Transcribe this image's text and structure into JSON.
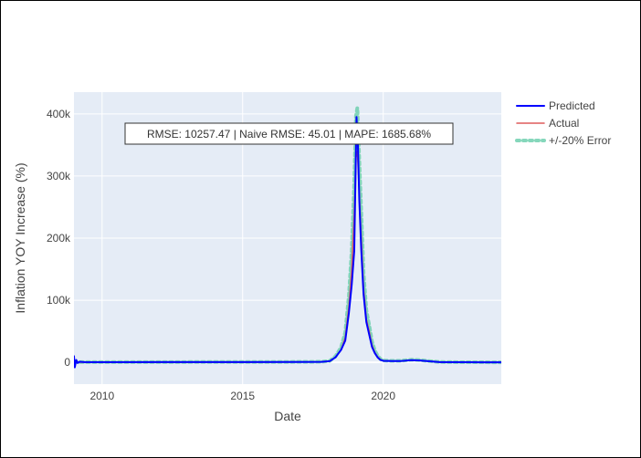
{
  "chart_data": {
    "type": "line",
    "title": "",
    "xlabel": "Date",
    "ylabel": "Inflation YOY Increase (%)",
    "xlim": [
      2009.0,
      2024.2
    ],
    "ylim": [
      -35000,
      435000
    ],
    "x_ticks": [
      2010,
      2015,
      2020
    ],
    "x_tick_labels": [
      "2010",
      "2015",
      "2020"
    ],
    "y_ticks": [
      0,
      100000,
      200000,
      300000,
      400000
    ],
    "y_tick_labels": [
      "0",
      "100k",
      "200k",
      "300k",
      "400k"
    ],
    "grid": true,
    "legend_position": "top-right",
    "annotation": "RMSE: 10257.47 | Naive RMSE: 45.01 | MAPE: 1685.68%",
    "series": [
      {
        "name": "Predicted",
        "color": "#0000FF",
        "style": "solid",
        "x": [
          2009.0,
          2009.03,
          2009.08,
          2009.13,
          2009.2,
          2009.4,
          2010,
          2012,
          2015,
          2017,
          2017.8,
          2018.1,
          2018.3,
          2018.5,
          2018.65,
          2018.78,
          2018.88,
          2018.97,
          2019.05,
          2019.1,
          2019.15,
          2019.22,
          2019.3,
          2019.4,
          2019.5,
          2019.6,
          2019.7,
          2019.8,
          2019.9,
          2020.0,
          2020.3,
          2020.6,
          2021.0,
          2021.3,
          2021.7,
          2022.0,
          2022.5,
          2023.0,
          2023.5,
          2024.2
        ],
        "y": [
          10000,
          -8000,
          4000,
          -1000,
          1000,
          200,
          300,
          400,
          500,
          600,
          800,
          2000,
          8000,
          20000,
          35000,
          80000,
          125000,
          180000,
          395000,
          350000,
          260000,
          180000,
          110000,
          65000,
          45000,
          25000,
          15000,
          8000,
          4000,
          2500,
          2000,
          2000,
          3500,
          3000,
          1500,
          500,
          300,
          200,
          150,
          100
        ]
      },
      {
        "name": "Actual",
        "color": "#DE5C5C",
        "style": "solid",
        "x": [
          2009.0,
          2010,
          2012,
          2015,
          2017,
          2017.8,
          2018.1,
          2018.3,
          2018.5,
          2018.65,
          2018.78,
          2018.88,
          2018.97,
          2019.03,
          2019.08,
          2019.15,
          2019.22,
          2019.3,
          2019.4,
          2019.5,
          2019.6,
          2019.7,
          2019.8,
          2019.9,
          2020.0,
          2020.3,
          2020.6,
          2021.0,
          2021.3,
          2021.7,
          2022.0,
          2022.5,
          2023.0,
          2023.5,
          2024.2
        ],
        "y": [
          300,
          300,
          400,
          500,
          600,
          800,
          2000,
          8000,
          20000,
          40000,
          90000,
          150000,
          240000,
          330000,
          340000,
          270000,
          200000,
          120000,
          70000,
          50000,
          28000,
          16000,
          9000,
          4500,
          2500,
          2000,
          2000,
          3500,
          3000,
          1500,
          500,
          300,
          200,
          150,
          100
        ]
      },
      {
        "name": "+/-20% Error",
        "color": "#66CDAA",
        "style": "dotted",
        "x": [
          2009.0,
          2010,
          2012,
          2015,
          2017,
          2017.8,
          2018.1,
          2018.3,
          2018.5,
          2018.65,
          2018.78,
          2018.88,
          2018.97,
          2019.03,
          2019.08,
          2019.15,
          2019.22,
          2019.3,
          2019.4,
          2019.5,
          2019.6,
          2019.7,
          2019.8,
          2019.9,
          2020.0,
          2020.3,
          2020.6,
          2021.0,
          2021.3,
          2021.7,
          2022.0,
          2022.5,
          2023.0,
          2023.5,
          2024.2
        ],
        "y": [
          360,
          360,
          480,
          600,
          720,
          960,
          2400,
          9600,
          24000,
          48000,
          108000,
          180000,
          288000,
          396000,
          410000,
          324000,
          240000,
          144000,
          84000,
          60000,
          33600,
          19200,
          10800,
          5400,
          3000,
          2400,
          2400,
          4200,
          3600,
          1800,
          600,
          360,
          240,
          180,
          120
        ]
      }
    ]
  }
}
